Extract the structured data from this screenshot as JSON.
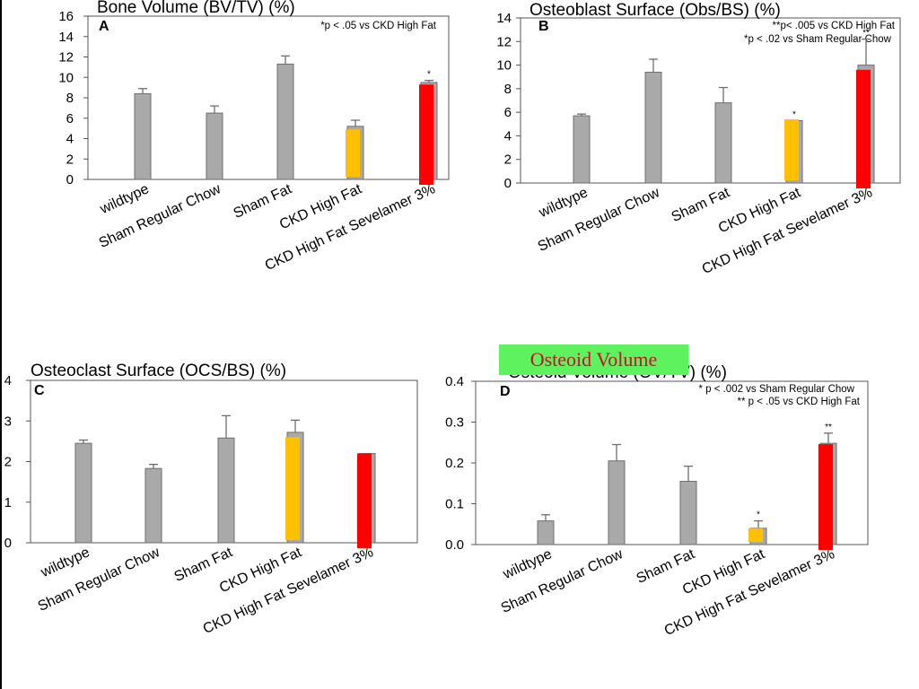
{
  "overlay": {
    "label": "Osteoid Volume",
    "background": "#5ef25e",
    "text_color": "#c8102e"
  },
  "colors": {
    "gray": "#a9a9a9",
    "gold": "#ffc000",
    "red": "#ff0000"
  },
  "chart_data": [
    {
      "id": "A",
      "type": "bar",
      "title": "Bone Volume (BV/TV) (%)",
      "notes": [
        "*p < .05 vs  CKD High Fat"
      ],
      "categories": [
        "wildtype",
        "Sham Regular Chow",
        "Sham Fat",
        "CKD High Fat",
        "CKD High Fat Sevelamer 3%"
      ],
      "values": [
        8.4,
        6.5,
        11.3,
        5.2,
        9.5
      ],
      "errors": [
        0.5,
        0.7,
        0.8,
        0.6,
        0.2
      ],
      "highlight_overlays": [
        null,
        null,
        null,
        {
          "color": "gold",
          "value": 4.9
        },
        {
          "color": "red",
          "value": 9.3
        }
      ],
      "annotations": [
        "",
        "",
        "",
        "",
        "*"
      ],
      "ylim": [
        0,
        16
      ],
      "yticks": [
        "0",
        "2",
        "4",
        "6",
        "8",
        "10",
        "12",
        "14",
        "16"
      ]
    },
    {
      "id": "B",
      "type": "bar",
      "title": "Osteoblast Surface (Obs/BS) (%)",
      "notes": [
        "**p< .005 vs CKD High Fat",
        "*p < .02 vs Sham Regular Chow"
      ],
      "categories": [
        "wildtype",
        "Sham Regular Chow",
        "Sham Fat",
        "CKD High Fat",
        "CKD High Fat Sevelamer 3%"
      ],
      "values": [
        5.7,
        9.4,
        6.8,
        5.3,
        10.0
      ],
      "errors": [
        0.15,
        1.1,
        1.3,
        0,
        2.2
      ],
      "highlight_overlays": [
        null,
        null,
        null,
        {
          "color": "gold",
          "value": 5.4
        },
        {
          "color": "red",
          "value": 9.6
        }
      ],
      "annotations": [
        "",
        "",
        "",
        "*",
        "**"
      ],
      "ylim": [
        0,
        14
      ],
      "yticks": [
        "0",
        "2",
        "4",
        "6",
        "8",
        "10",
        "12",
        "14"
      ]
    },
    {
      "id": "C",
      "type": "bar",
      "title": "Osteoclast Surface (OCS/BS) (%)",
      "notes": [],
      "categories": [
        "wildtype",
        "Sham Regular Chow",
        "Sham Fat",
        "CKD High Fat",
        "CKD High Fat Sevelamer 3%"
      ],
      "values": [
        2.45,
        1.83,
        2.58,
        2.72,
        2.2
      ],
      "errors": [
        0.08,
        0.1,
        0.55,
        0.3,
        0
      ],
      "highlight_overlays": [
        null,
        null,
        null,
        {
          "color": "gold",
          "value": 2.6
        },
        {
          "color": "red",
          "value": 2.2
        }
      ],
      "annotations": [
        "",
        "",
        "",
        "",
        ""
      ],
      "ylim": [
        0,
        4
      ],
      "yticks": [
        "0",
        "1",
        "2",
        "3",
        "4"
      ]
    },
    {
      "id": "D",
      "type": "bar",
      "title": "Osteoid Volume (OV/TV) (%)",
      "notes": [
        "* p < .002 vs Sham Regular Chow",
        "** p < .05 vs CKD High Fat"
      ],
      "categories": [
        "wildtype",
        "Sham Regular Chow",
        "Sham Fat",
        "CKD High Fat",
        "CKD High Fat Sevelamer 3%"
      ],
      "values": [
        0.058,
        0.205,
        0.155,
        0.04,
        0.248
      ],
      "errors": [
        0.015,
        0.04,
        0.037,
        0.018,
        0.025
      ],
      "highlight_overlays": [
        null,
        null,
        null,
        {
          "color": "gold",
          "value": 0.04
        },
        {
          "color": "red",
          "value": 0.246
        }
      ],
      "annotations": [
        "",
        "",
        "",
        "*",
        "**"
      ],
      "ylim": [
        0,
        0.4
      ],
      "yticks": [
        "0.0",
        "0.1",
        "0.2",
        "0.3",
        "0.4"
      ]
    }
  ]
}
